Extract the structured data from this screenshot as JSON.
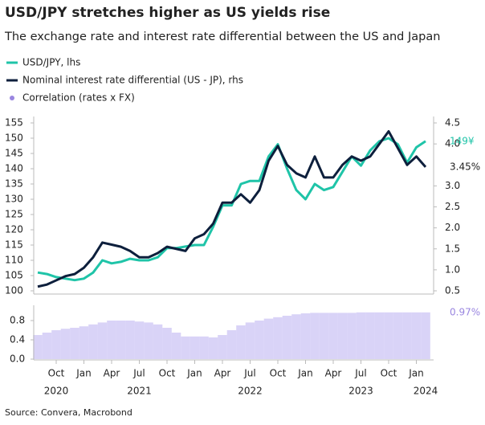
{
  "title": "USD/JPY stretches higher as US yields rise",
  "subtitle": "The exchange rate and interest rate differential between the US and Japan",
  "source": "Source: Convera, Macrobond",
  "chart_data": [
    {
      "type": "line",
      "x": [
        "2020-08",
        "2020-09",
        "2020-10",
        "2020-11",
        "2020-12",
        "2021-01",
        "2021-02",
        "2021-03",
        "2021-04",
        "2021-05",
        "2021-06",
        "2021-07",
        "2021-08",
        "2021-09",
        "2021-10",
        "2021-11",
        "2021-12",
        "2022-01",
        "2022-02",
        "2022-03",
        "2022-04",
        "2022-05",
        "2022-06",
        "2022-07",
        "2022-08",
        "2022-09",
        "2022-10",
        "2022-11",
        "2022-12",
        "2023-01",
        "2023-02",
        "2023-03",
        "2023-04",
        "2023-05",
        "2023-06",
        "2023-07",
        "2023-08",
        "2023-09",
        "2023-10",
        "2023-11",
        "2023-12",
        "2024-01",
        "2024-02"
      ],
      "series": [
        {
          "name": "USD/JPY, lhs",
          "color": "#1fc4a8",
          "last_label": "149¥",
          "values": [
            106,
            105.5,
            104.5,
            104,
            103.5,
            104,
            106,
            110,
            109,
            109.5,
            110.5,
            110,
            110,
            111,
            114,
            114,
            114.5,
            115,
            115,
            121,
            128,
            128,
            135,
            136,
            136,
            144,
            148,
            140,
            133,
            130,
            135,
            133,
            134,
            139,
            144,
            141,
            146,
            149,
            150,
            148,
            142,
            147,
            149
          ]
        },
        {
          "name": "Nominal interest rate differential (US - JP), rhs",
          "color": "#0d1f3c",
          "axis": "y2",
          "last_label": "3.45%",
          "values": [
            0.6,
            0.65,
            0.75,
            0.85,
            0.9,
            1.05,
            1.3,
            1.65,
            1.6,
            1.55,
            1.45,
            1.3,
            1.3,
            1.4,
            1.55,
            1.5,
            1.45,
            1.75,
            1.85,
            2.1,
            2.6,
            2.6,
            2.8,
            2.6,
            2.9,
            3.6,
            3.95,
            3.5,
            3.3,
            3.2,
            3.7,
            3.2,
            3.2,
            3.5,
            3.7,
            3.6,
            3.7,
            4.0,
            4.3,
            3.9,
            3.5,
            3.7,
            3.45
          ]
        }
      ],
      "ylim": [
        100,
        155
      ],
      "yticks": [
        100,
        105,
        110,
        115,
        120,
        125,
        130,
        135,
        140,
        145,
        150,
        155
      ],
      "y2lim": [
        0.5,
        4.5
      ],
      "y2ticks": [
        0.5,
        {
          "value": 1,
          "label": "1.0"
        },
        1.5,
        {
          "value": 2,
          "label": "2.0"
        },
        2.5,
        {
          "value": 3,
          "label": "3.0"
        },
        {
          "value": 4,
          "label": "4.0"
        },
        4.5
      ]
    },
    {
      "type": "bar",
      "x": [
        "2020-08",
        "2020-09",
        "2020-10",
        "2020-11",
        "2020-12",
        "2021-01",
        "2021-02",
        "2021-03",
        "2021-04",
        "2021-05",
        "2021-06",
        "2021-07",
        "2021-08",
        "2021-09",
        "2021-10",
        "2021-11",
        "2021-12",
        "2022-01",
        "2022-02",
        "2022-03",
        "2022-04",
        "2022-05",
        "2022-06",
        "2022-07",
        "2022-08",
        "2022-09",
        "2022-10",
        "2022-11",
        "2022-12",
        "2023-01",
        "2023-02",
        "2023-03",
        "2023-04",
        "2023-05",
        "2023-06",
        "2023-07",
        "2023-08",
        "2023-09",
        "2023-10",
        "2023-11",
        "2023-12",
        "2024-01",
        "2024-02"
      ],
      "series": [
        {
          "name": "Correlation (rates x FX)",
          "color": "#d9d3f7",
          "label_color": "#9a86e0",
          "last_label": "0.97%",
          "values": [
            0.5,
            0.55,
            0.6,
            0.63,
            0.65,
            0.68,
            0.72,
            0.76,
            0.8,
            0.8,
            0.8,
            0.78,
            0.76,
            0.72,
            0.65,
            0.55,
            0.47,
            0.47,
            0.47,
            0.45,
            0.5,
            0.6,
            0.7,
            0.76,
            0.8,
            0.84,
            0.87,
            0.9,
            0.93,
            0.95,
            0.96,
            0.96,
            0.96,
            0.96,
            0.96,
            0.97,
            0.97,
            0.97,
            0.97,
            0.97,
            0.97,
            0.97,
            0.97
          ]
        }
      ],
      "ylim": [
        0,
        1
      ],
      "yticks": [
        {
          "value": 0,
          "label": "0.0"
        },
        0.4,
        0.8
      ],
      "xticks": [
        {
          "value": "2020-10",
          "label": "Oct"
        },
        {
          "value": "2021-01",
          "label": "Jan"
        },
        {
          "value": "2021-04",
          "label": "Apr"
        },
        {
          "value": "2021-07",
          "label": "Jul"
        },
        {
          "value": "2021-10",
          "label": "Oct"
        },
        {
          "value": "2022-01",
          "label": "Jan"
        },
        {
          "value": "2022-04",
          "label": "Apr"
        },
        {
          "value": "2022-07",
          "label": "Jul"
        },
        {
          "value": "2022-10",
          "label": "Oct"
        },
        {
          "value": "2023-01",
          "label": "Jan"
        },
        {
          "value": "2023-04",
          "label": "Apr"
        },
        {
          "value": "2023-07",
          "label": "Jul"
        },
        {
          "value": "2023-10",
          "label": "Oct"
        },
        {
          "value": "2024-01",
          "label": "Jan"
        }
      ],
      "year_labels": [
        {
          "value": "2020-10",
          "label": "2020"
        },
        {
          "value": "2021-07",
          "label": "2021"
        },
        {
          "value": "2022-07",
          "label": "2022"
        },
        {
          "value": "2023-07",
          "label": "2023"
        },
        {
          "value": "2024-02",
          "label": "2024"
        }
      ]
    }
  ]
}
